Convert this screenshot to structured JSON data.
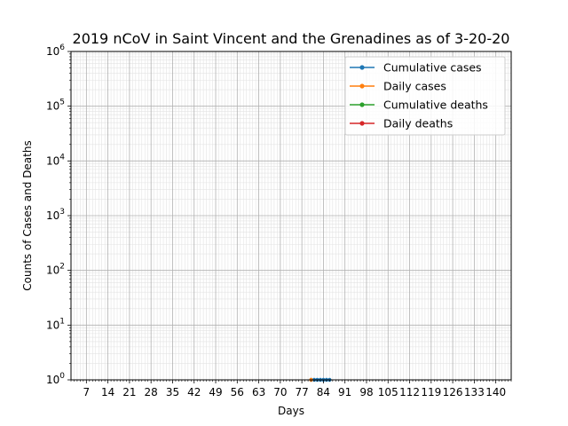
{
  "chart_data": {
    "type": "line",
    "title": "2019 nCoV in Saint Vincent and the Grenadines as of 3-20-20",
    "xlabel": "Days",
    "ylabel": "Counts of Cases and Deaths",
    "xlim": [
      2,
      145
    ],
    "ylim": [
      1,
      1000000
    ],
    "yscale": "log",
    "x_ticks": [
      7,
      14,
      21,
      28,
      35,
      42,
      49,
      56,
      63,
      70,
      77,
      84,
      91,
      98,
      105,
      112,
      119,
      126,
      133,
      140
    ],
    "y_ticks": [
      {
        "value": 1,
        "base": "10",
        "exp": "0"
      },
      {
        "value": 10,
        "base": "10",
        "exp": "1"
      },
      {
        "value": 100,
        "base": "10",
        "exp": "2"
      },
      {
        "value": 1000,
        "base": "10",
        "exp": "3"
      },
      {
        "value": 10000,
        "base": "10",
        "exp": "4"
      },
      {
        "value": 100000,
        "base": "10",
        "exp": "5"
      },
      {
        "value": 1000000,
        "base": "10",
        "exp": "6"
      }
    ],
    "grid": true,
    "legend_position": "top-right",
    "series": [
      {
        "name": "Cumulative cases",
        "color": "#1f77b4",
        "x": [
          80,
          81,
          82,
          83,
          84,
          85,
          86
        ],
        "y": [
          1,
          1,
          1,
          1,
          1,
          1,
          1
        ]
      },
      {
        "name": "Daily cases",
        "color": "#ff7f0e",
        "x": [
          80
        ],
        "y": [
          1
        ]
      },
      {
        "name": "Cumulative deaths",
        "color": "#2ca02c",
        "x": [],
        "y": []
      },
      {
        "name": "Daily deaths",
        "color": "#d62728",
        "x": [],
        "y": []
      }
    ]
  }
}
